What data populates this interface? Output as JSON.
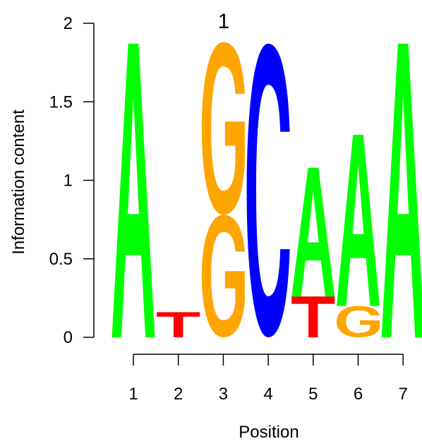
{
  "chart_data": {
    "type": "sequence-logo",
    "title": "1",
    "xlabel": "Position",
    "ylabel": "Information content",
    "ylim": [
      0,
      2
    ],
    "yticks": [
      0,
      0.5,
      1,
      1.5,
      2
    ],
    "ytick_labels": [
      "0",
      "0.5",
      "1",
      "1.5",
      "2"
    ],
    "positions": [
      "1",
      "2",
      "3",
      "4",
      "5",
      "6",
      "7"
    ],
    "colors": {
      "A": "#00ff00",
      "C": "#0000ff",
      "G": "#ffa500",
      "T": "#ff0000"
    },
    "stacks": [
      [
        {
          "letter": "A",
          "bits": 1.87
        }
      ],
      [
        {
          "letter": "T",
          "bits": 0.16
        }
      ],
      [
        {
          "letter": "G",
          "bits": 0.78
        },
        {
          "letter": "G",
          "bits": 1.1
        }
      ],
      [
        {
          "letter": "C",
          "bits": 1.87
        }
      ],
      [
        {
          "letter": "T",
          "bits": 0.26
        },
        {
          "letter": "A",
          "bits": 0.82
        }
      ],
      [
        {
          "letter": "G",
          "bits": 0.2
        },
        {
          "letter": "A",
          "bits": 1.09
        }
      ],
      [
        {
          "letter": "A",
          "bits": 1.87
        }
      ]
    ]
  }
}
